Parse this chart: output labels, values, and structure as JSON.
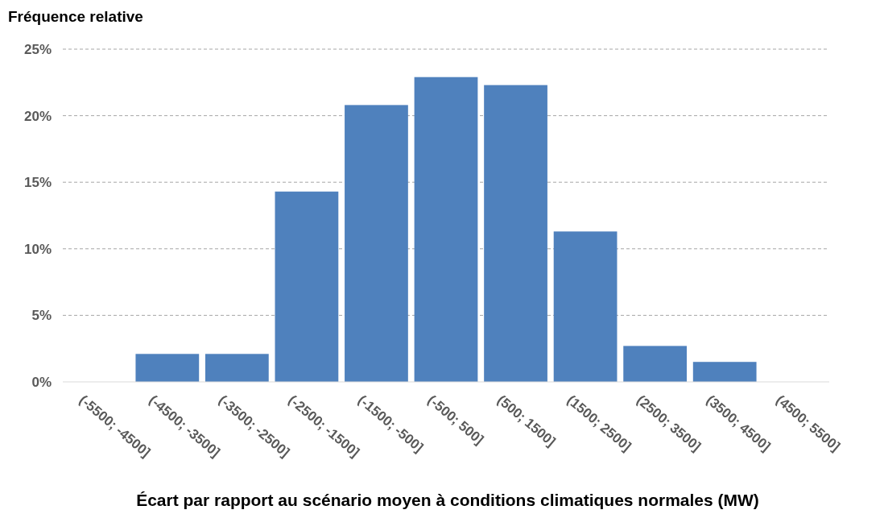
{
  "chart_data": {
    "type": "bar",
    "ylabel": "Fréquence relative",
    "xlabel": "Écart par rapport au scénario moyen à conditions climatiques normales (MW)",
    "categories": [
      "(-5500; -4500]",
      "(-4500; -3500]",
      "(-3500; -2500]",
      "(-2500; -1500]",
      "(-1500; -500]",
      "(-500; 500]",
      "(500; 1500]",
      "(1500; 2500]",
      "(2500; 3500]",
      "(3500; 4500]",
      "(4500; 5500]"
    ],
    "values": [
      0,
      2.1,
      2.1,
      14.3,
      20.8,
      22.9,
      22.3,
      11.3,
      2.7,
      1.5,
      0
    ],
    "color": "#4f81bd",
    "ylim": [
      0,
      25
    ],
    "yticks": [
      {
        "value": 0,
        "label": "0%"
      },
      {
        "value": 5,
        "label": "5%"
      },
      {
        "value": 10,
        "label": "10%"
      },
      {
        "value": 15,
        "label": "15%"
      },
      {
        "value": 20,
        "label": "20%"
      },
      {
        "value": 25,
        "label": "25%"
      }
    ],
    "grid": "y"
  }
}
